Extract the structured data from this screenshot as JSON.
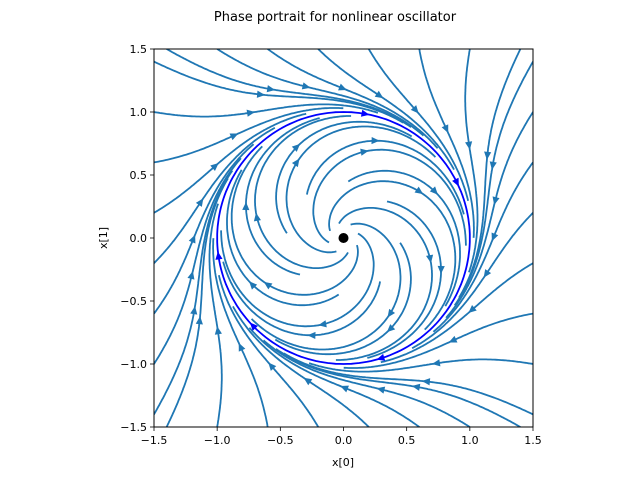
{
  "chart_data": {
    "type": "phase_portrait",
    "title": "Phase portrait for nonlinear oscillator",
    "xlabel": "x[0]",
    "ylabel": "x[1]",
    "xlim": [
      -1.5,
      1.5
    ],
    "ylim": [
      -1.5,
      1.5
    ],
    "xticks": [
      "−1.5",
      "−1.0",
      "−0.5",
      "0.0",
      "0.5",
      "1.0",
      "1.5"
    ],
    "yticks": [
      "−1.5",
      "−1.0",
      "−0.5",
      "0.0",
      "0.5",
      "1.0",
      "1.5"
    ],
    "equilibrium": {
      "x": 0.0,
      "y": 0.0,
      "color": "#000000"
    },
    "limit_cycle": {
      "radius": 1.0,
      "direction": "clockwise",
      "color": "#0000ff"
    },
    "streamline_color": "#1f77b4",
    "grid": false,
    "legend": "none"
  }
}
